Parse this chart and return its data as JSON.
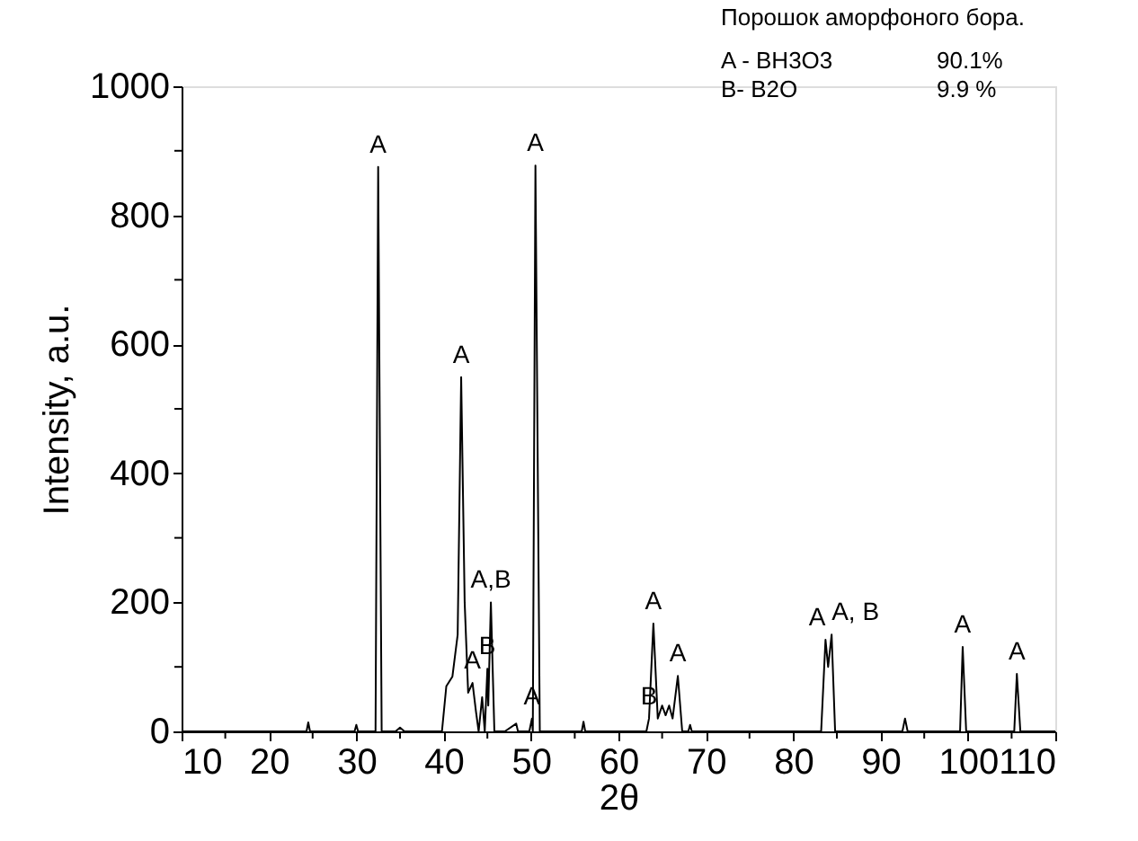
{
  "chart_data": {
    "type": "line",
    "xlabel": "2θ",
    "ylabel": "Intensity, a.u.",
    "xlim": [
      10,
      110
    ],
    "ylim": [
      0,
      1000
    ],
    "xticks": [
      10,
      {
        "value": 15,
        "label": null
      },
      20,
      {
        "value": 25,
        "label": null
      },
      30,
      {
        "value": 35,
        "label": null
      },
      40,
      {
        "value": 45,
        "label": null
      },
      50,
      {
        "value": 55,
        "label": null
      },
      60,
      {
        "value": 65,
        "label": null
      },
      70,
      {
        "value": 75,
        "label": null
      },
      80,
      {
        "value": 85,
        "label": null
      },
      90,
      {
        "value": 95,
        "label": null
      },
      100,
      {
        "value": 105,
        "label": null
      },
      110
    ],
    "yticks": [
      0,
      {
        "value": 100,
        "label": null
      },
      200,
      {
        "value": 300,
        "label": null
      },
      400,
      {
        "value": 500,
        "label": null
      },
      600,
      {
        "value": 700,
        "label": null
      },
      800,
      {
        "value": 900,
        "label": null
      },
      1000
    ],
    "grid": false,
    "marker": "none",
    "line_style": "solid",
    "series": [
      {
        "color": "#000000",
        "x": [
          10,
          24.3,
          24.5,
          24.7,
          29.8,
          30,
          30.2,
          32.2,
          32.5,
          32.9,
          34.5,
          35,
          35.5,
          39.8,
          40.3,
          41,
          41.6,
          42,
          42.4,
          42.8,
          43.3,
          43.7,
          44.0,
          44.4,
          44.7,
          45.0,
          45.1,
          45.4,
          45.8,
          47,
          48.3,
          48.5,
          49.8,
          50.1,
          50.2,
          50.5,
          51,
          55.8,
          56,
          56.2,
          63.2,
          63.5,
          64.0,
          64.5,
          65,
          65.4,
          65.8,
          66.2,
          66.8,
          67.3,
          68,
          68.2,
          68.4,
          83.2,
          83.7,
          84.0,
          84.4,
          84.8,
          92.5,
          92.8,
          93.1,
          99.1,
          99.4,
          99.8,
          105.3,
          105.6,
          106,
          110
        ],
        "values": [
          0,
          0,
          14,
          0,
          0,
          10,
          0,
          0,
          875,
          0,
          0,
          6,
          0,
          0,
          70,
          85,
          150,
          549,
          200,
          60,
          75,
          30,
          0,
          53,
          0,
          97,
          40,
          200,
          0,
          0,
          12,
          0,
          0,
          20,
          0,
          877,
          0,
          0,
          15,
          0,
          0,
          20,
          167,
          20,
          40,
          25,
          40,
          20,
          86,
          0,
          0,
          10,
          0,
          0,
          142,
          100,
          150,
          0,
          0,
          20,
          0,
          0,
          131,
          0,
          0,
          89,
          0,
          0
        ]
      }
    ],
    "annotations": [
      "Порошок аморфоного бора.",
      "A - BH3O3",
      "90.1%",
      "B- B2O",
      "9.9 %",
      {
        "text": "A",
        "x": 32.5,
        "y": 875
      },
      {
        "text": "A",
        "x": 42,
        "y": 549
      },
      {
        "text": "A",
        "x": 50.5,
        "y": 877
      },
      {
        "text": "A,B",
        "x": 45.4,
        "y": 200
      },
      {
        "text": "B",
        "x": 45.0,
        "y": 97
      },
      {
        "text": "A",
        "x": 43.3,
        "y": 75
      },
      {
        "text": "A",
        "x": 50.1,
        "y": 20
      },
      {
        "text": "B",
        "x": 63.5,
        "y": 20
      },
      {
        "text": "A",
        "x": 64.0,
        "y": 167
      },
      {
        "text": "A",
        "x": 66.8,
        "y": 86
      },
      {
        "text": "A",
        "x": 83.7,
        "y": 142
      },
      {
        "text": "A, B",
        "x": 84.4,
        "y": 150
      },
      {
        "text": "A",
        "x": 99.4,
        "y": 131
      },
      {
        "text": "A",
        "x": 105.6,
        "y": 89
      }
    ]
  }
}
